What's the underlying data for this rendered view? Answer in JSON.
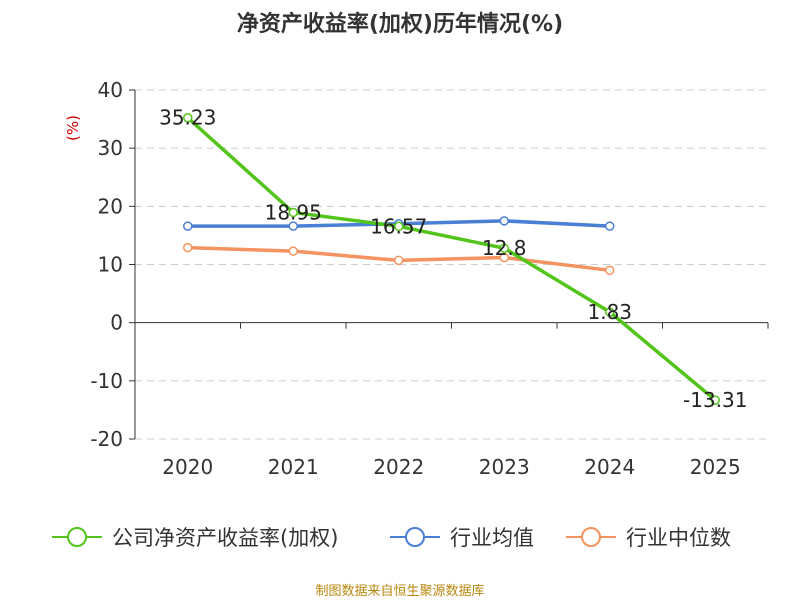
{
  "chart_data": {
    "type": "line",
    "title": "净资产收益率(加权)历年情况(%)",
    "ylabel": "(%)",
    "xlabel": "",
    "ylim": [
      -20,
      40
    ],
    "yticks": [
      -20,
      -10,
      0,
      10,
      20,
      30,
      40
    ],
    "categories": [
      "2020",
      "2021",
      "2022",
      "2023",
      "2024",
      "2025"
    ],
    "series": [
      {
        "name": "公司净资产收益率(加权)",
        "color": "#52c41a",
        "values": [
          35.23,
          18.95,
          16.57,
          12.8,
          1.83,
          -13.31
        ],
        "labels": [
          "35.23",
          "18.95",
          "16.57",
          "12.8",
          "1.83",
          "-13.31"
        ]
      },
      {
        "name": "行业均值",
        "color": "#4a7fd6",
        "values": [
          16.6,
          16.6,
          17.0,
          17.5,
          16.6,
          null
        ]
      },
      {
        "name": "行业中位数",
        "color": "#f4935f",
        "values": [
          12.9,
          12.3,
          10.7,
          11.2,
          9.0,
          null
        ]
      }
    ],
    "legend_position": "bottom",
    "grid": true
  },
  "source": "制图数据来自恒生聚源数据库"
}
